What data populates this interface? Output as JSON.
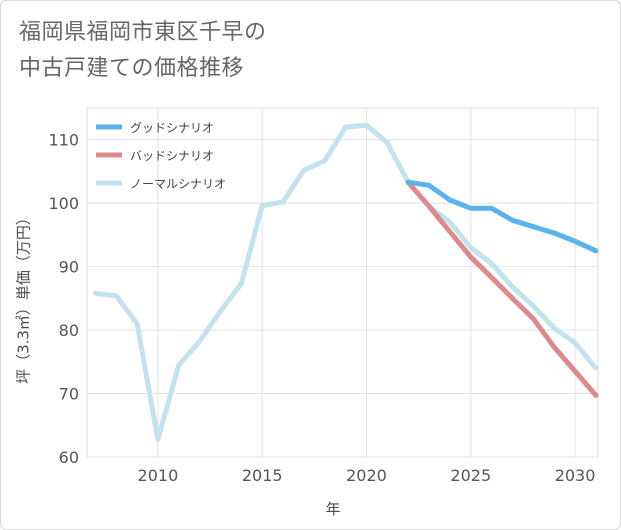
{
  "title": "福岡県福岡市東区千早の\n中古戸建ての価格推移",
  "chart_data": {
    "type": "line",
    "title": "福岡県福岡市東区千早の中古戸建ての価格推移",
    "xlabel": "年",
    "ylabel": "坪（3.3㎡）単価（万円）",
    "xlim": [
      2006.6,
      2031.1
    ],
    "ylim": [
      60,
      115
    ],
    "xticks": [
      2010,
      2015,
      2020,
      2025,
      2030
    ],
    "yticks": [
      60,
      70,
      80,
      90,
      100,
      110
    ],
    "grid": true,
    "legend_position": "top-left",
    "series": [
      {
        "name": "ノーマルシナリオ",
        "color": "#c3e2ee",
        "x": [
          2007,
          2008,
          2009,
          2010,
          2011,
          2012,
          2013,
          2014,
          2015,
          2016,
          2017,
          2018,
          2019,
          2020,
          2021,
          2022,
          2023,
          2024,
          2025,
          2026,
          2027,
          2028,
          2029,
          2030,
          2031
        ],
        "y": [
          85.8,
          85.4,
          81.0,
          62.8,
          74.5,
          78.2,
          83.0,
          87.3,
          99.6,
          100.2,
          105.2,
          106.7,
          112.0,
          112.3,
          109.5,
          103.3,
          99.5,
          97.0,
          93.0,
          90.5,
          86.8,
          83.8,
          80.3,
          78.0,
          74.0
        ]
      },
      {
        "name": "バッドシナリオ",
        "color": "#dd8a8f",
        "x": [
          2022,
          2023,
          2024,
          2025,
          2026,
          2027,
          2028,
          2029,
          2030,
          2031
        ],
        "y": [
          103.3,
          99.5,
          95.5,
          91.5,
          88.3,
          85.0,
          81.8,
          77.3,
          73.5,
          69.7
        ]
      },
      {
        "name": "グッドシナリオ",
        "color": "#5bb3ec",
        "x": [
          2022,
          2023,
          2024,
          2025,
          2026,
          2027,
          2028,
          2029,
          2030,
          2031
        ],
        "y": [
          103.3,
          102.8,
          100.5,
          99.2,
          99.2,
          97.3,
          96.3,
          95.3,
          94.0,
          92.5
        ]
      }
    ],
    "legend": [
      "グッドシナリオ",
      "バッドシナリオ",
      "ノーマルシナリオ"
    ]
  }
}
